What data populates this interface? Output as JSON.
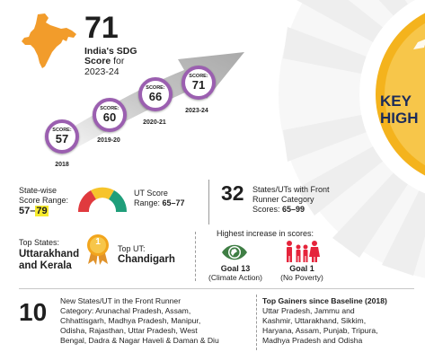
{
  "header": {
    "score": "71",
    "line1": "India's SDG",
    "line2_bold": "Score",
    "line2_rest": " for",
    "line3": "2023-24"
  },
  "timeline": [
    {
      "label": "SCORE:",
      "value": "57",
      "year": "2018"
    },
    {
      "label": "SCORE:",
      "value": "60",
      "year": "2019-20"
    },
    {
      "label": "SCORE:",
      "value": "66",
      "year": "2020-21"
    },
    {
      "label": "SCORE:",
      "value": "71",
      "year": "2023-24"
    }
  ],
  "key_highlights": {
    "line1": "KEY",
    "line2": "HIGH"
  },
  "state_range": {
    "line1": "State-wise",
    "line2": "Score Range:",
    "low": "57",
    "sep": "–",
    "high": "79"
  },
  "ut_range": {
    "line1": "UT Score",
    "line2_label": "Range: ",
    "line2_value": "65–77"
  },
  "front_runner": {
    "count": "32",
    "line1": "States/UTs with Front",
    "line2": "Runner Category",
    "line3_label": "Scores: ",
    "line3_value": "65–99"
  },
  "top_states": {
    "label": "Top States:",
    "line1": "Uttarakhand",
    "line2": "and Kerala",
    "medal": "1"
  },
  "top_ut": {
    "label": "Top UT:",
    "value": "Chandigarh"
  },
  "increase": {
    "title": "Highest increase in scores:",
    "goal13": {
      "name": "Goal 13",
      "desc": "(Climate Action)"
    },
    "goal1": {
      "name": "Goal 1",
      "desc": "(No Poverty)"
    }
  },
  "new_front_runner": {
    "count": "10",
    "lines": [
      "New States/UT in the Front Runner",
      "Category: Arunachal Pradesh, Assam,",
      "Chhattisgarh, Madhya Pradesh, Manipur,",
      "Odisha, Rajasthan, Uttar Pradesh, West",
      "Bengal, Dadra & Nagar Haveli & Daman & Diu"
    ]
  },
  "top_gainers": {
    "title": "Top Gainers since Baseline (2018)",
    "lines": [
      "Uttar Pradesh, Jammu and",
      "Kashmir, Uttarakhand, Sikkim,",
      "Haryana, Assam, Punjab, Tripura,",
      "Madhya Pradesh and Odisha"
    ]
  },
  "colors": {
    "purple": "#9b5fb0",
    "gauge_red": "#e03a3e",
    "gauge_yellow": "#f6c42b",
    "gauge_green": "#1f9e7a",
    "medal": "#f2a51d",
    "goal13": "#3f7e44",
    "goal1": "#e5243b",
    "navy": "#1c2c5b"
  }
}
